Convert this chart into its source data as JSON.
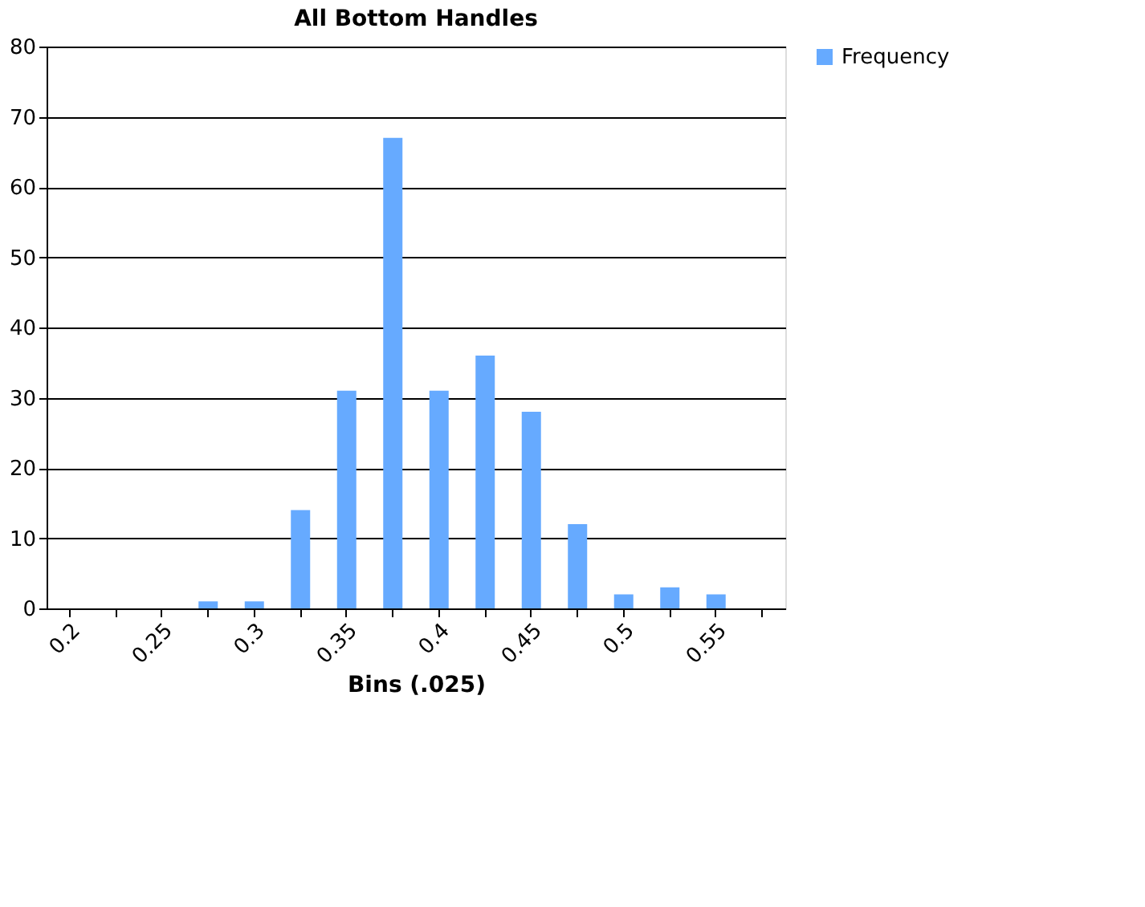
{
  "chart_data": {
    "type": "bar",
    "title": "All Bottom Handles",
    "xlabel": "Bins (.025)",
    "categories": [
      "0.2",
      null,
      "0.25",
      null,
      "0.3",
      null,
      "0.35",
      null,
      "0.4",
      null,
      "0.45",
      null,
      "0.5",
      null,
      "0.55",
      null
    ],
    "series": [
      {
        "name": "Frequency",
        "color": "#66aaff",
        "values": [
          0,
          0,
          0,
          1,
          1,
          14,
          31,
          67,
          31,
          36,
          28,
          12,
          2,
          3,
          2,
          0
        ]
      }
    ],
    "ylim": [
      0,
      80
    ],
    "yticks": [
      0,
      10,
      20,
      30,
      40,
      50,
      60,
      70,
      80
    ],
    "grid": "y",
    "legend": "right"
  }
}
